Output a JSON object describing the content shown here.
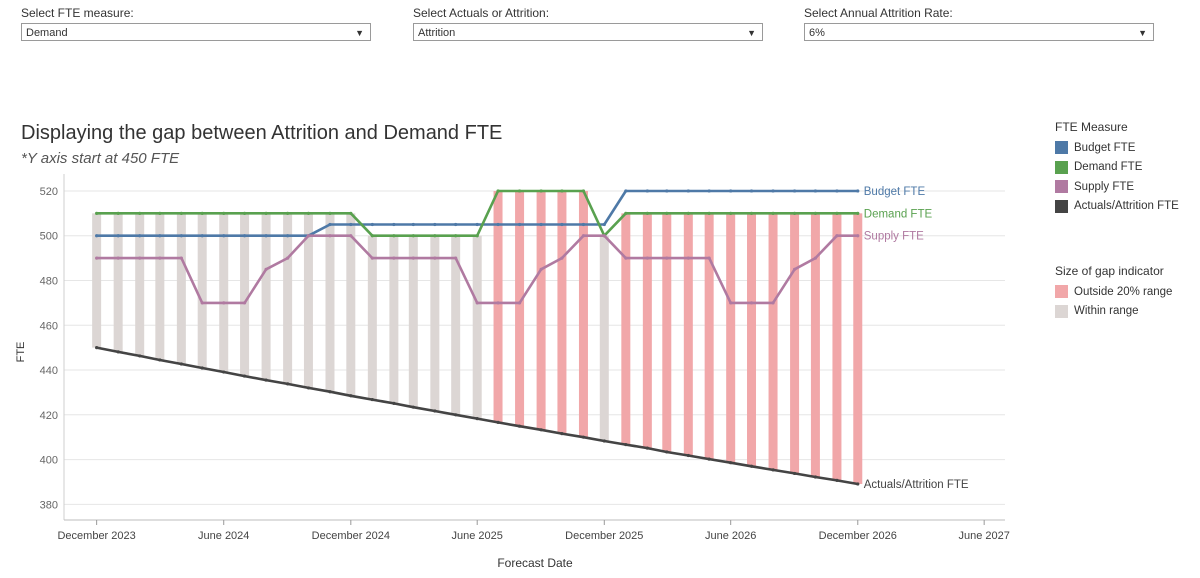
{
  "filters": [
    {
      "label": "Select FTE measure:",
      "value": "Demand"
    },
    {
      "label": "Select Actuals or Attrition:",
      "value": "Attrition"
    },
    {
      "label": "Select Annual Attrition Rate:",
      "value": "6%"
    }
  ],
  "legend_fte": {
    "title": "FTE Measure",
    "items": [
      {
        "label": "Budget FTE",
        "color": "#4e79a7"
      },
      {
        "label": "Demand FTE",
        "color": "#59a14f"
      },
      {
        "label": "Supply FTE",
        "color": "#b07aa1"
      },
      {
        "label": "Actuals/Attrition FTE",
        "color": "#444444"
      }
    ]
  },
  "legend_gap": {
    "title": "Size of gap indicator",
    "items": [
      {
        "label": "Outside 20% range",
        "color": "#f1a7a9"
      },
      {
        "label": "Within range",
        "color": "#dcd6d4"
      }
    ]
  },
  "chart_data": {
    "type": "line",
    "title": "Displaying the gap between Attrition and Demand FTE",
    "subtitle": "*Y axis start at 450 FTE",
    "xlabel": "Forecast Date",
    "ylabel": "FTE",
    "ylim": [
      373,
      524
    ],
    "yticks": [
      380,
      400,
      420,
      440,
      460,
      480,
      500,
      520
    ],
    "xlim": [
      "2023-10-15",
      "2027-07-01"
    ],
    "xticks": [
      {
        "label": "December 2023",
        "date": "2023-12-01"
      },
      {
        "label": "June 2024",
        "date": "2024-06-01"
      },
      {
        "label": "December 2024",
        "date": "2024-12-01"
      },
      {
        "label": "June 2025",
        "date": "2025-06-01"
      },
      {
        "label": "December 2025",
        "date": "2025-12-01"
      },
      {
        "label": "June 2026",
        "date": "2026-06-01"
      },
      {
        "label": "December 2026",
        "date": "2026-12-01"
      },
      {
        "label": "June 2027",
        "date": "2027-06-01"
      }
    ],
    "grid": true,
    "x": [
      "2023-12",
      "2024-01",
      "2024-02",
      "2024-03",
      "2024-04",
      "2024-05",
      "2024-06",
      "2024-07",
      "2024-08",
      "2024-09",
      "2024-10",
      "2024-11",
      "2024-12",
      "2025-01",
      "2025-02",
      "2025-03",
      "2025-04",
      "2025-05",
      "2025-06",
      "2025-07",
      "2025-08",
      "2025-09",
      "2025-10",
      "2025-11",
      "2025-12",
      "2026-01",
      "2026-02",
      "2026-03",
      "2026-04",
      "2026-05",
      "2026-06",
      "2026-07",
      "2026-08",
      "2026-09",
      "2026-10",
      "2026-11",
      "2026-12"
    ],
    "series": [
      {
        "name": "Budget FTE",
        "color": "#4e79a7",
        "end_label": "Budget FTE",
        "values": [
          500,
          500,
          500,
          500,
          500,
          500,
          500,
          500,
          500,
          500,
          500,
          505,
          505,
          505,
          505,
          505,
          505,
          505,
          505,
          505,
          505,
          505,
          505,
          505,
          505,
          520,
          520,
          520,
          520,
          520,
          520,
          520,
          520,
          520,
          520,
          520,
          520
        ]
      },
      {
        "name": "Demand FTE",
        "color": "#59a14f",
        "end_label": "Demand FTE",
        "values": [
          510,
          510,
          510,
          510,
          510,
          510,
          510,
          510,
          510,
          510,
          510,
          510,
          510,
          500,
          500,
          500,
          500,
          500,
          500,
          520,
          520,
          520,
          520,
          520,
          500,
          510,
          510,
          510,
          510,
          510,
          510,
          510,
          510,
          510,
          510,
          510,
          510
        ]
      },
      {
        "name": "Supply FTE",
        "color": "#b07aa1",
        "end_label": "Supply FTE",
        "values": [
          490,
          490,
          490,
          490,
          490,
          470,
          470,
          470,
          485,
          490,
          500,
          500,
          500,
          490,
          490,
          490,
          490,
          490,
          470,
          470,
          470,
          485,
          490,
          500,
          500,
          490,
          490,
          490,
          490,
          490,
          470,
          470,
          470,
          485,
          490,
          500,
          500
        ]
      },
      {
        "name": "Actuals/Attrition FTE",
        "color": "#444444",
        "end_label": "Actuals/Attrition FTE",
        "values": [
          450,
          448.1,
          446.3,
          444.5,
          442.7,
          440.9,
          439.1,
          437.3,
          435.5,
          433.8,
          432.0,
          430.3,
          428.5,
          426.8,
          425.1,
          423.4,
          421.7,
          420.0,
          418.3,
          416.6,
          414.9,
          413.3,
          411.6,
          410.0,
          408.3,
          406.7,
          405.1,
          403.4,
          401.8,
          400.2,
          398.6,
          397.0,
          395.4,
          393.8,
          392.2,
          390.7,
          389.1
        ]
      }
    ],
    "gap_bars": {
      "from_series": "Demand FTE",
      "to_series": "Actuals/Attrition FTE",
      "category": [
        "Within range",
        "Within range",
        "Within range",
        "Within range",
        "Within range",
        "Within range",
        "Within range",
        "Within range",
        "Within range",
        "Within range",
        "Within range",
        "Within range",
        "Within range",
        "Within range",
        "Within range",
        "Within range",
        "Within range",
        "Within range",
        "Within range",
        "Outside 20% range",
        "Outside 20% range",
        "Outside 20% range",
        "Outside 20% range",
        "Outside 20% range",
        "Within range",
        "Outside 20% range",
        "Outside 20% range",
        "Outside 20% range",
        "Outside 20% range",
        "Outside 20% range",
        "Outside 20% range",
        "Outside 20% range",
        "Outside 20% range",
        "Outside 20% range",
        "Outside 20% range",
        "Outside 20% range",
        "Outside 20% range"
      ]
    }
  }
}
